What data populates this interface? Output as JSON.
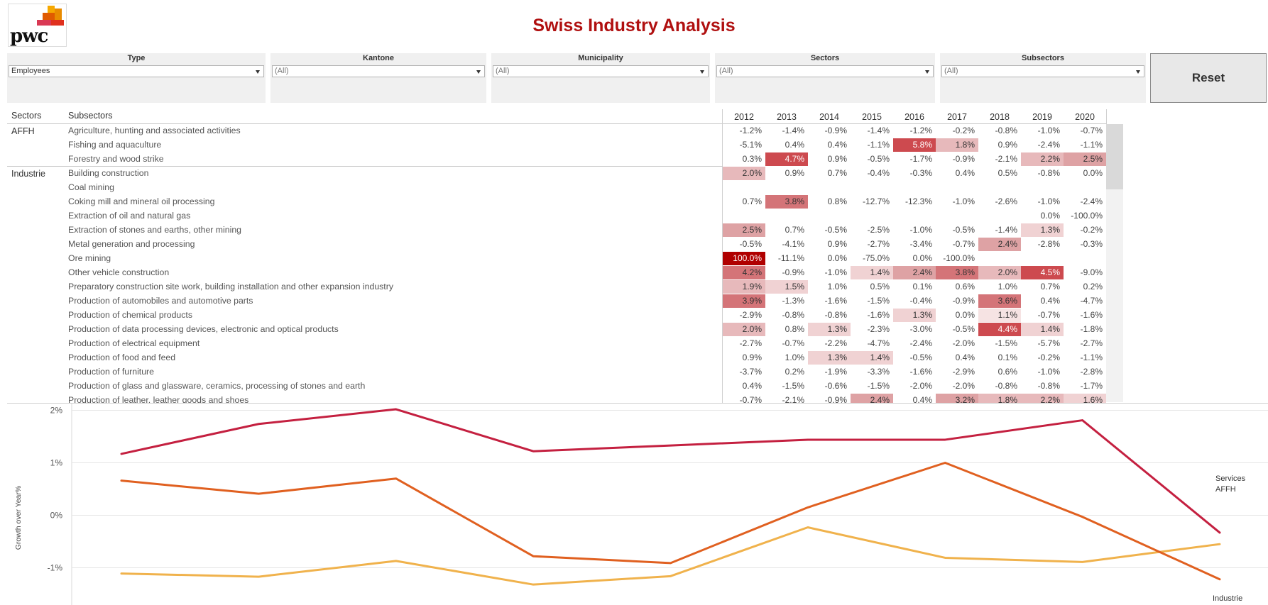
{
  "logo_text": "pwc",
  "title": "Swiss Industry Analysis",
  "filters": [
    {
      "label": "Type",
      "value": "Employees"
    },
    {
      "label": "Kantone",
      "value": "(All)"
    },
    {
      "label": "Municipality",
      "value": "(All)"
    },
    {
      "label": "Sectors",
      "value": "(All)"
    },
    {
      "label": "Subsectors",
      "value": "(All)"
    }
  ],
  "reset_label": "Reset",
  "table": {
    "header_sectors": "Sectors",
    "header_subsectors": "Subsectors",
    "years": [
      "2012",
      "2013",
      "2014",
      "2015",
      "2016",
      "2017",
      "2018",
      "2019",
      "2020"
    ],
    "rows": [
      {
        "sector": "AFFH",
        "subsector": "Agriculture, hunting and associated activities",
        "values": [
          "-1.2%",
          "-1.4%",
          "-0.9%",
          "-1.4%",
          "-1.2%",
          "-0.2%",
          "-0.8%",
          "-1.0%",
          "-0.7%"
        ]
      },
      {
        "sector": "",
        "subsector": "Fishing and aquaculture",
        "values": [
          "-5.1%",
          "0.4%",
          "0.4%",
          "-1.1%",
          "5.8%",
          "1.8%",
          "0.9%",
          "-2.4%",
          "-1.1%"
        ]
      },
      {
        "sector": "",
        "subsector": "Forestry and wood strike",
        "values": [
          "0.3%",
          "4.7%",
          "0.9%",
          "-0.5%",
          "-1.7%",
          "-0.9%",
          "-2.1%",
          "2.2%",
          "2.5%"
        ]
      },
      {
        "sector": "Industrie",
        "subsector": "Building construction",
        "values": [
          "2.0%",
          "0.9%",
          "0.7%",
          "-0.4%",
          "-0.3%",
          "0.4%",
          "0.5%",
          "-0.8%",
          "0.0%"
        ]
      },
      {
        "sector": "",
        "subsector": "Coal mining",
        "values": [
          "",
          "",
          "",
          "",
          "",
          "",
          "",
          "",
          ""
        ]
      },
      {
        "sector": "",
        "subsector": "Coking mill and mineral oil processing",
        "values": [
          "0.7%",
          "3.8%",
          "0.8%",
          "-12.7%",
          "-12.3%",
          "-1.0%",
          "-2.6%",
          "-1.0%",
          "-2.4%"
        ]
      },
      {
        "sector": "",
        "subsector": "Extraction of oil and natural gas",
        "values": [
          "",
          "",
          "",
          "",
          "",
          "",
          "",
          "0.0%",
          "-100.0%"
        ]
      },
      {
        "sector": "",
        "subsector": "Extraction of stones and earths, other mining",
        "values": [
          "2.5%",
          "0.7%",
          "-0.5%",
          "-2.5%",
          "-1.0%",
          "-0.5%",
          "-1.4%",
          "1.3%",
          "-0.2%"
        ]
      },
      {
        "sector": "",
        "subsector": "Metal generation and processing",
        "values": [
          "-0.5%",
          "-4.1%",
          "0.9%",
          "-2.7%",
          "-3.4%",
          "-0.7%",
          "2.4%",
          "-2.8%",
          "-0.3%"
        ]
      },
      {
        "sector": "",
        "subsector": "Ore mining",
        "values": [
          "100.0%",
          "-11.1%",
          "0.0%",
          "-75.0%",
          "0.0%",
          "-100.0%",
          "",
          "",
          ""
        ]
      },
      {
        "sector": "",
        "subsector": "Other vehicle construction",
        "values": [
          "4.2%",
          "-0.9%",
          "-1.0%",
          "1.4%",
          "2.4%",
          "3.8%",
          "2.0%",
          "4.5%",
          "-9.0%"
        ]
      },
      {
        "sector": "",
        "subsector": "Preparatory construction site work, building installation and other expansion industry",
        "values": [
          "1.9%",
          "1.5%",
          "1.0%",
          "0.5%",
          "0.1%",
          "0.6%",
          "1.0%",
          "0.7%",
          "0.2%"
        ]
      },
      {
        "sector": "",
        "subsector": "Production of automobiles and automotive parts",
        "values": [
          "3.9%",
          "-1.3%",
          "-1.6%",
          "-1.5%",
          "-0.4%",
          "-0.9%",
          "3.6%",
          "0.4%",
          "-4.7%"
        ]
      },
      {
        "sector": "",
        "subsector": "Production of chemical products",
        "values": [
          "-2.9%",
          "-0.8%",
          "-0.8%",
          "-1.6%",
          "1.3%",
          "0.0%",
          "1.1%",
          "-0.7%",
          "-1.6%"
        ]
      },
      {
        "sector": "",
        "subsector": "Production of data processing devices, electronic and optical products",
        "values": [
          "2.0%",
          "0.8%",
          "1.3%",
          "-2.3%",
          "-3.0%",
          "-0.5%",
          "4.4%",
          "1.4%",
          "-1.8%"
        ]
      },
      {
        "sector": "",
        "subsector": "Production of electrical equipment",
        "values": [
          "-2.7%",
          "-0.7%",
          "-2.2%",
          "-4.7%",
          "-2.4%",
          "-2.0%",
          "-1.5%",
          "-5.7%",
          "-2.7%"
        ]
      },
      {
        "sector": "",
        "subsector": "Production of food and feed",
        "values": [
          "0.9%",
          "1.0%",
          "1.3%",
          "1.4%",
          "-0.5%",
          "0.4%",
          "0.1%",
          "-0.2%",
          "-1.1%"
        ]
      },
      {
        "sector": "",
        "subsector": "Production of furniture",
        "values": [
          "-3.7%",
          "0.2%",
          "-1.9%",
          "-3.3%",
          "-1.6%",
          "-2.9%",
          "0.6%",
          "-1.0%",
          "-2.8%"
        ]
      },
      {
        "sector": "",
        "subsector": "Production of glass and glassware, ceramics, processing of stones and earth",
        "values": [
          "0.4%",
          "-1.5%",
          "-0.6%",
          "-1.5%",
          "-2.0%",
          "-2.0%",
          "-0.8%",
          "-0.8%",
          "-1.7%"
        ]
      },
      {
        "sector": "",
        "subsector": "Production of leather, leather goods and shoes",
        "values": [
          "-0.7%",
          "-2.1%",
          "-0.9%",
          "2.4%",
          "0.4%",
          "3.2%",
          "1.8%",
          "2.2%",
          "1.6%"
        ]
      }
    ]
  },
  "chart_data": {
    "type": "line",
    "ylabel": "Growth over Year%",
    "x": [
      "2012",
      "2013",
      "2014",
      "2015",
      "2016",
      "2017",
      "2018",
      "2019",
      "2020"
    ],
    "ylim": [
      -1.5,
      2.05
    ],
    "yticks": [
      {
        "v": 2,
        "label": "2%"
      },
      {
        "v": 1,
        "label": "1%"
      },
      {
        "v": 0,
        "label": "0%"
      },
      {
        "v": -1,
        "label": "-1%"
      }
    ],
    "grid": true,
    "legend": "end-of-line labels",
    "series": [
      {
        "name": "Services",
        "color": "#c42040",
        "values": [
          1.17,
          1.74,
          2.02,
          1.22,
          1.33,
          1.44,
          1.44,
          1.81,
          -0.33
        ]
      },
      {
        "name": "AFFH",
        "color": "#f0b24c",
        "values": [
          -1.11,
          -1.17,
          -0.87,
          -1.32,
          -1.16,
          -0.23,
          -0.81,
          -0.89,
          -0.55
        ]
      },
      {
        "name": "Industrie",
        "color": "#e06020",
        "values": [
          0.66,
          0.41,
          0.7,
          -0.78,
          -0.91,
          0.15,
          1.0,
          -0.03,
          -1.22
        ]
      }
    ]
  }
}
